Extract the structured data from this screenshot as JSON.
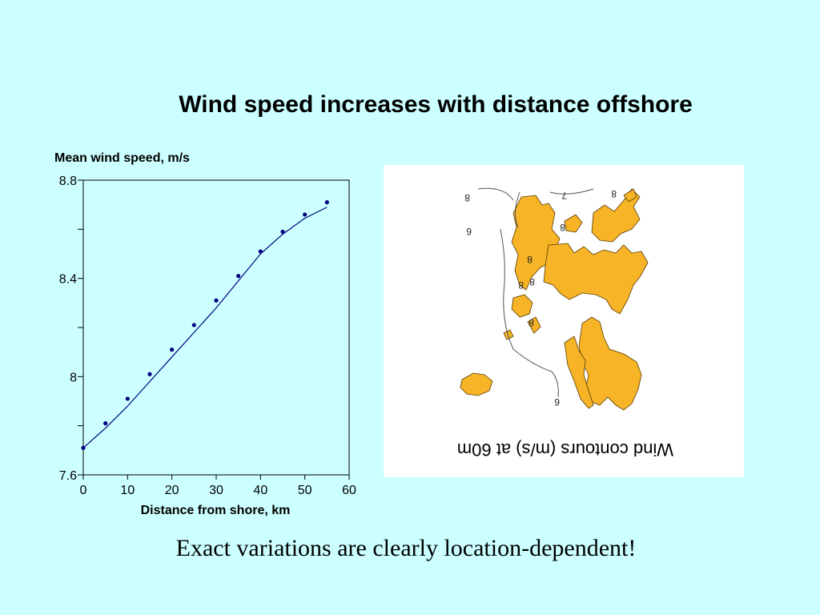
{
  "slide": {
    "title": "Wind speed increases with distance offshore",
    "caption": "Exact variations are clearly location-dependent!"
  },
  "chart_data": {
    "type": "scatter",
    "ylabel": "Mean wind speed, m/s",
    "xlabel": "Distance from shore, km",
    "xlim": [
      0,
      60
    ],
    "ylim": [
      7.6,
      8.8
    ],
    "x_ticks": [
      0,
      10,
      20,
      30,
      40,
      50,
      60
    ],
    "x_tick_labels": [
      "0",
      "10",
      "20",
      "30",
      "40",
      "50",
      "60"
    ],
    "y_ticks": [
      7.6,
      7.8,
      8.0,
      8.2,
      8.4,
      8.6,
      8.8
    ],
    "y_tick_labels": [
      "7.6",
      "",
      "8",
      "",
      "8.4",
      "",
      "8.8"
    ],
    "grid": false,
    "point_color": "#000080",
    "line_color": "#000080",
    "series": [
      {
        "mode": "points",
        "x": [
          0,
          5,
          10,
          15,
          20,
          25,
          30,
          35,
          40,
          45,
          50,
          55
        ],
        "y": [
          7.71,
          7.81,
          7.91,
          8.01,
          8.11,
          8.21,
          8.31,
          8.41,
          8.51,
          8.59,
          8.66,
          8.71
        ]
      },
      {
        "mode": "line",
        "x": [
          0,
          5,
          10,
          15,
          20,
          25,
          30,
          35,
          40,
          45,
          50,
          55
        ],
        "y": [
          7.71,
          7.79,
          7.88,
          7.98,
          8.08,
          8.18,
          8.28,
          8.39,
          8.5,
          8.58,
          8.645,
          8.69
        ]
      }
    ]
  },
  "map": {
    "background": "#ffffff",
    "land_color": "#f7b427",
    "contour_labels": [
      "8",
      "7",
      "8",
      "6",
      "8",
      "8",
      "8",
      "8",
      "8",
      "6"
    ],
    "caption": "Wind contours (m/s) at 60m"
  }
}
